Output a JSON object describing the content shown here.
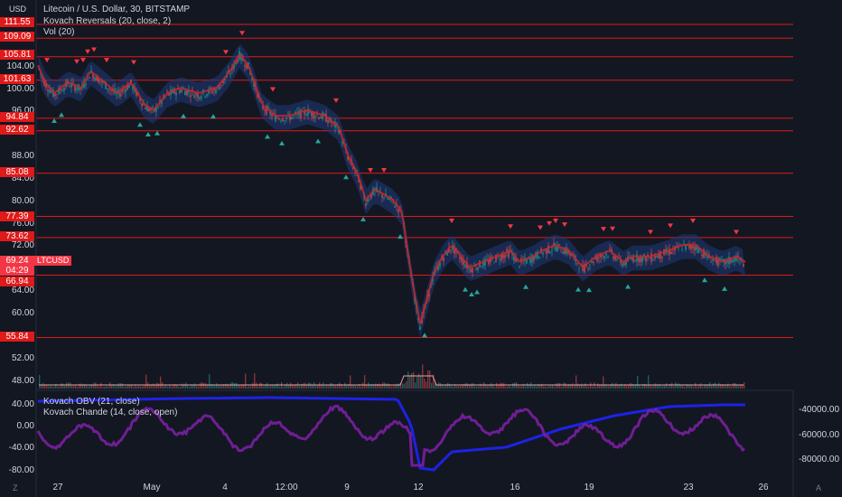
{
  "header": {
    "currency": "USD",
    "title": "Litecoin / U.S. Dollar, 30, BITSTAMP",
    "indicator1": "Kovach Reversals (20, close, 2)",
    "indicator2": "Vol (20)"
  },
  "price_axis": {
    "labels": [
      "104.00",
      "100.00",
      "96.00",
      "88.00",
      "84.00",
      "80.00",
      "76.00",
      "72.00",
      "64.00",
      "60.00",
      "52.00",
      "48.00"
    ]
  },
  "level_lines": [
    "111.55",
    "109.09",
    "105.81",
    "101.63",
    "94.84",
    "92.62",
    "85.08",
    "77.39",
    "73.62",
    "66.94",
    "55.84"
  ],
  "current_price": {
    "price": "69.24",
    "symbol": "LTCUSD",
    "countdown": "04:29"
  },
  "lower_pane": {
    "obv_label": "Kovach OBV (21, close)",
    "chande_label": "Kovach Chande (14, close, open)",
    "left_axis": [
      "40.00",
      "0.00",
      "-40.00",
      "-80.00"
    ],
    "right_axis": [
      "-40000.00",
      "-60000.00",
      "-80000.00"
    ]
  },
  "time_axis": [
    "27",
    "May",
    "4",
    "12:00",
    "9",
    "12",
    "16",
    "19",
    "23",
    "26"
  ],
  "corner_buttons": {
    "left": "Z",
    "right": "A"
  },
  "colors": {
    "background": "#131722",
    "level_line": "#e01919",
    "up_marker": "#26a69a",
    "down_marker": "#f23645",
    "obv": "#1e22e6",
    "chande": "#7b1fa2",
    "band": "#1e3a7a",
    "signal": "#c62828"
  }
}
